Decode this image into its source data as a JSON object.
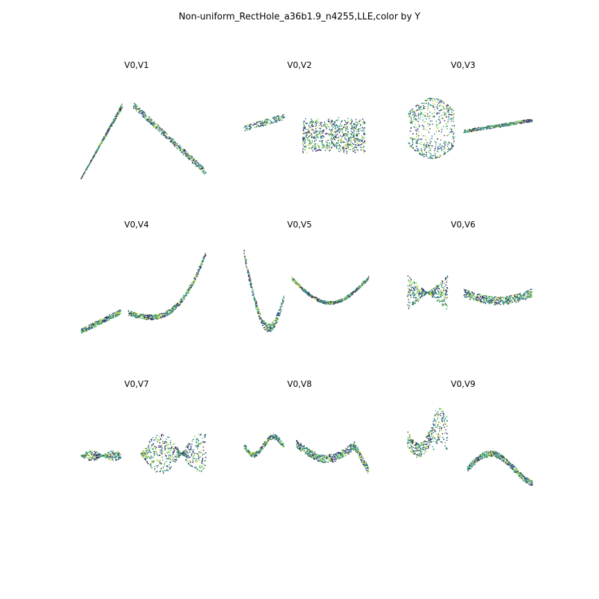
{
  "figure": {
    "title": "Non-uniform_RectHole_a36b1.9_n4255,LLE,color by Y",
    "colormap": "viridis",
    "colormap_stops": [
      "#440154",
      "#3b528b",
      "#21918c",
      "#5ec962",
      "#fde725"
    ]
  },
  "chart_data": [
    {
      "type": "scatter",
      "title": "V0,V1",
      "xlabel": "",
      "ylabel": "",
      "axes_visible": false,
      "grid": false,
      "x_range": [
        0,
        1
      ],
      "y_range": [
        0,
        1
      ],
      "approx_points": 4255,
      "trend": {
        "left_x": [
          0.0,
          0.5,
          0.52
        ],
        "left_y": [
          0.0,
          0.85,
          0.9
        ],
        "gap_x": [
          0.52,
          0.6
        ],
        "right_x": [
          0.6,
          1.0
        ],
        "right_y": [
          0.75,
          0.12
        ],
        "color_spread": 0.04,
        "dominant_gap": true
      }
    },
    {
      "type": "scatter",
      "title": "V0,V2",
      "xlabel": "",
      "ylabel": "",
      "axes_visible": false,
      "grid": false,
      "x_range": [
        0,
        1
      ],
      "y_range": [
        0,
        1
      ],
      "approx_points": 4255,
      "trend": {
        "left_x": [
          0.0,
          0.35
        ],
        "left_y": [
          0.35,
          0.6
        ],
        "right_x": [
          0.47,
          1.0
        ],
        "right_band_low": 0.18,
        "right_band_high": 0.75
      }
    },
    {
      "type": "scatter",
      "title": "V0,V3",
      "xlabel": "",
      "ylabel": "",
      "axes_visible": false,
      "grid": false,
      "x_range": [
        0,
        1
      ],
      "y_range": [
        0,
        1
      ],
      "approx_points": 4255,
      "trend": {
        "left_x": [
          0.0,
          0.38
        ],
        "left_band_low": 0.2,
        "left_band_high": 0.8,
        "right_x": [
          0.45,
          1.0
        ],
        "right_y": [
          0.4,
          0.55
        ]
      }
    },
    {
      "type": "scatter",
      "title": "V0,V4",
      "xlabel": "",
      "ylabel": "",
      "axes_visible": false,
      "grid": false,
      "x_range": [
        0,
        1
      ],
      "y_range": [
        0,
        1
      ],
      "approx_points": 4255,
      "trend": {
        "left_x": [
          0.0,
          0.32
        ],
        "left_y": [
          0.9,
          0.55
        ],
        "right_x": [
          0.4,
          1.0
        ],
        "right_peak_y": 0.78,
        "right_end_y": 0.0
      }
    },
    {
      "type": "scatter",
      "title": "V0,V5",
      "xlabel": "",
      "ylabel": "",
      "axes_visible": false,
      "grid": false,
      "x_range": [
        0,
        1
      ],
      "y_range": [
        0,
        1
      ],
      "approx_points": 4255,
      "trend": {
        "left_x": [
          0.0,
          0.32
        ],
        "left_peak_y": 0.85,
        "left_end_y": 0.15,
        "right_x": [
          0.4,
          1.0
        ],
        "right_peak_y": 0.75,
        "right_end_y": 0.38
      }
    },
    {
      "type": "scatter",
      "title": "V0,V6",
      "xlabel": "",
      "ylabel": "",
      "axes_visible": false,
      "grid": false,
      "x_range": [
        0,
        1
      ],
      "y_range": [
        0,
        1
      ],
      "approx_points": 4255,
      "trend": {
        "left_x": [
          0.0,
          0.35
        ],
        "left_pattern": "x-crossing",
        "right_x": [
          0.45,
          1.0
        ],
        "right_pattern": "s-band"
      }
    },
    {
      "type": "scatter",
      "title": "V0,V7",
      "xlabel": "",
      "ylabel": "",
      "axes_visible": false,
      "grid": false,
      "x_range": [
        0,
        1
      ],
      "y_range": [
        0,
        1
      ],
      "approx_points": 4255,
      "trend": {
        "left_x": [
          0.0,
          0.32
        ],
        "left_pattern": "small-wave",
        "right_x": [
          0.48,
          1.0
        ],
        "right_pattern": "double-twist"
      }
    },
    {
      "type": "scatter",
      "title": "V0,V8",
      "xlabel": "",
      "ylabel": "",
      "axes_visible": false,
      "grid": false,
      "x_range": [
        0,
        1
      ],
      "y_range": [
        0,
        1
      ],
      "approx_points": 4255,
      "trend": {
        "left_x": [
          0.0,
          0.32
        ],
        "left_pattern": "wave",
        "right_x": [
          0.42,
          1.0
        ],
        "right_pattern": "rise-dip-rise"
      }
    },
    {
      "type": "scatter",
      "title": "V0,V9",
      "xlabel": "",
      "ylabel": "",
      "axes_visible": false,
      "grid": false,
      "x_range": [
        0,
        1
      ],
      "y_range": [
        0,
        1
      ],
      "approx_points": 4255,
      "trend": {
        "left_x": [
          0.0,
          0.32
        ],
        "left_pattern": "wave-with-spike",
        "right_x": [
          0.48,
          1.0
        ],
        "right_pattern": "dip-wave"
      }
    }
  ]
}
